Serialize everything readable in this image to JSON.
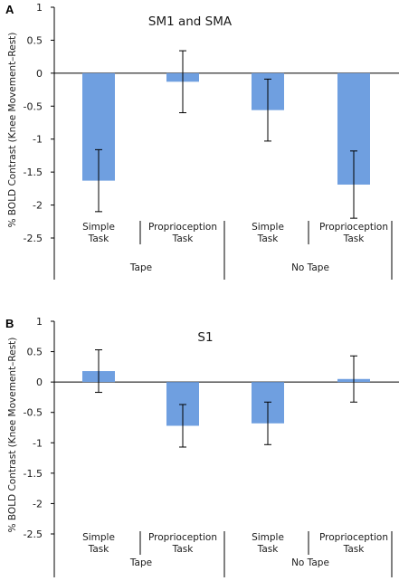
{
  "chart_data": [
    {
      "type": "bar",
      "panel_label": "A",
      "title": "SM1 and SMA",
      "ylabel": "% BOLD Contrast (Knee Movement–Rest)",
      "ylim": [
        -2.5,
        1
      ],
      "yticks": [
        "1",
        "0.5",
        "0",
        "-0.5",
        "-1",
        "-1.5",
        "-2",
        "-2.5"
      ],
      "categories": [
        {
          "line1": "Simple",
          "line2": "Task"
        },
        {
          "line1": "Proprioception",
          "line2": "Task"
        },
        {
          "line1": "Simple",
          "line2": "Task"
        },
        {
          "line1": "Proprioception",
          "line2": "Task"
        }
      ],
      "groups": [
        "Tape",
        "No Tape"
      ],
      "values": [
        -1.63,
        -0.13,
        -0.56,
        -1.69
      ],
      "errors": [
        0.47,
        0.47,
        0.47,
        0.51
      ],
      "bar_color": "#6f9fe0"
    },
    {
      "type": "bar",
      "panel_label": "B",
      "title": "S1",
      "ylabel": "% BOLD Contrast (Knee Movement–Rest)",
      "ylim": [
        -2.5,
        1
      ],
      "yticks": [
        "1",
        "0.5",
        "0",
        "-0.5",
        "-1",
        "-1.5",
        "-2",
        "-2.5"
      ],
      "categories": [
        {
          "line1": "Simple",
          "line2": "Task"
        },
        {
          "line1": "Proprioception",
          "line2": "Task"
        },
        {
          "line1": "Simple",
          "line2": "Task"
        },
        {
          "line1": "Proprioception",
          "line2": "Task"
        }
      ],
      "groups": [
        "Tape",
        "No Tape"
      ],
      "values": [
        0.18,
        -0.72,
        -0.68,
        0.05
      ],
      "errors": [
        0.35,
        0.35,
        0.35,
        0.38
      ],
      "bar_color": "#6f9fe0"
    }
  ]
}
